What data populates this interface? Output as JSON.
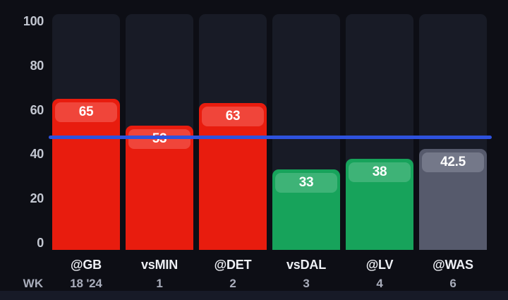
{
  "chart_data": {
    "type": "bar",
    "title": "",
    "categories": [
      "@GB",
      "vsMIN",
      "@DET",
      "vsDAL",
      "@LV",
      "@WAS"
    ],
    "week_row_label": "WK",
    "week_labels": [
      "18 '24",
      "1",
      "2",
      "3",
      "4",
      "6"
    ],
    "values": [
      65,
      53,
      63,
      33,
      38,
      42.5
    ],
    "bar_colors": [
      "red",
      "red",
      "red",
      "green",
      "green",
      "gray"
    ],
    "reference_line": {
      "value": 47.5
    },
    "yticks": [
      0,
      20,
      40,
      60,
      80,
      100
    ],
    "ylim": [
      0,
      100
    ],
    "grid": false,
    "legend": false
  },
  "colors": {
    "background": "#0d0e15",
    "band": "#171a27",
    "track": "#181b26",
    "bar-red": "#e81c0e",
    "pill-red": "#f0453a",
    "bar-green": "#17a35b",
    "pill-green": "#3eb377",
    "bar-gray": "#565a6c",
    "pill-gray": "#747889",
    "ref-line": "#2e52de",
    "tick-text": "#c3c7d1",
    "opp-text": "#eef0f5",
    "week-text": "#a9adbb"
  }
}
